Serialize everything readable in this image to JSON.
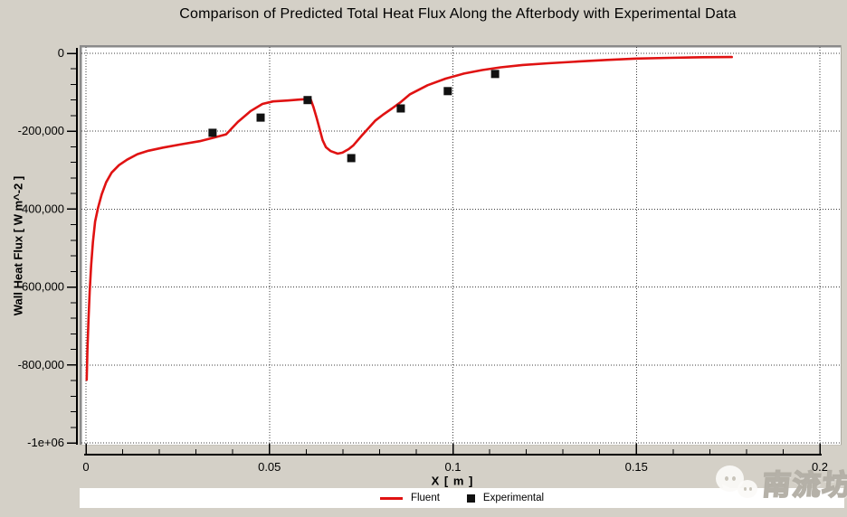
{
  "title": "Comparison of Predicted Total Heat Flux Along the Afterbody with Experimental Data",
  "colors": {
    "background": "#d4d0c7",
    "plot_background": "#ffffff",
    "fluent_line": "#e01212",
    "experimental_marker": "#111111",
    "grid": "#3c3c3c",
    "axis": "#000000"
  },
  "legend": {
    "items": [
      {
        "label": "Fluent",
        "marker": "red-line"
      },
      {
        "label": "Experimental",
        "marker": "black-square"
      }
    ]
  },
  "watermark": {
    "text": "南流坊",
    "icon": "wechat-bubbles"
  },
  "chart_data": {
    "type": "line",
    "title": "Comparison of Predicted Total Heat Flux Along the Afterbody with Experimental Data",
    "xlabel": "X [ m ]",
    "ylabel": "Wall Heat Flux [ W m^-2 ]",
    "xlim": [
      0,
      0.2
    ],
    "ylim": [
      -1000000,
      0
    ],
    "grid": "dotted-at-major-ticks",
    "legend_position": "bottom",
    "x_ticks": {
      "major": [
        0,
        0.05,
        0.1,
        0.15,
        0.2
      ],
      "labels": [
        "0",
        "0.05",
        "0.1",
        "0.15",
        "0.2"
      ],
      "minor_step": 0.01
    },
    "y_ticks": {
      "major": [
        0,
        -200000,
        -400000,
        -600000,
        -800000,
        -1000000
      ],
      "labels": [
        "0",
        "-200,000",
        "-400,000",
        "-600,000",
        "-800,000",
        "-1e+06"
      ],
      "minor_step": 40000
    },
    "series": [
      {
        "name": "Fluent",
        "type": "line",
        "color": "#e01212",
        "points": [
          [
            0.0002,
            -838000
          ],
          [
            0.0004,
            -762000
          ],
          [
            0.0007,
            -683000
          ],
          [
            0.001,
            -612000
          ],
          [
            0.0014,
            -545000
          ],
          [
            0.0019,
            -484000
          ],
          [
            0.0025,
            -432000
          ],
          [
            0.0033,
            -396000
          ],
          [
            0.0043,
            -362000
          ],
          [
            0.0055,
            -331000
          ],
          [
            0.007,
            -306000
          ],
          [
            0.009,
            -287000
          ],
          [
            0.0112,
            -273000
          ],
          [
            0.014,
            -259000
          ],
          [
            0.017,
            -250000
          ],
          [
            0.021,
            -242000
          ],
          [
            0.026,
            -233500
          ],
          [
            0.031,
            -225500
          ],
          [
            0.035,
            -216000
          ],
          [
            0.0382,
            -208000
          ],
          [
            0.0414,
            -176000
          ],
          [
            0.0449,
            -148000
          ],
          [
            0.0481,
            -130000
          ],
          [
            0.051,
            -123500
          ],
          [
            0.055,
            -121000
          ],
          [
            0.0585,
            -118500
          ],
          [
            0.0612,
            -117500
          ],
          [
            0.062,
            -138000
          ],
          [
            0.0628,
            -164000
          ],
          [
            0.0637,
            -195000
          ],
          [
            0.0645,
            -223000
          ],
          [
            0.0654,
            -241000
          ],
          [
            0.0667,
            -251000
          ],
          [
            0.0686,
            -257500
          ],
          [
            0.0699,
            -255000
          ],
          [
            0.0716,
            -246000
          ],
          [
            0.0729,
            -236000
          ],
          [
            0.0752,
            -211000
          ],
          [
            0.0769,
            -193000
          ],
          [
            0.0789,
            -172500
          ],
          [
            0.0809,
            -158000
          ],
          [
            0.0834,
            -141500
          ],
          [
            0.0858,
            -125000
          ],
          [
            0.0883,
            -105000
          ],
          [
            0.0931,
            -82000
          ],
          [
            0.098,
            -65000
          ],
          [
            0.103,
            -52000
          ],
          [
            0.108,
            -43000
          ],
          [
            0.113,
            -36000
          ],
          [
            0.119,
            -30000
          ],
          [
            0.126,
            -25500
          ],
          [
            0.134,
            -21000
          ],
          [
            0.142,
            -17000
          ],
          [
            0.15,
            -13500
          ],
          [
            0.159,
            -11500
          ],
          [
            0.168,
            -10000
          ],
          [
            0.176,
            -9500
          ]
        ]
      },
      {
        "name": "Experimental",
        "type": "scatter",
        "marker": "square",
        "color": "#111111",
        "points": [
          [
            0.0345,
            -204000
          ],
          [
            0.0476,
            -165000
          ],
          [
            0.0604,
            -120000
          ],
          [
            0.0723,
            -269000
          ],
          [
            0.0858,
            -141500
          ],
          [
            0.0986,
            -97000
          ],
          [
            0.1115,
            -53000
          ]
        ]
      }
    ]
  }
}
